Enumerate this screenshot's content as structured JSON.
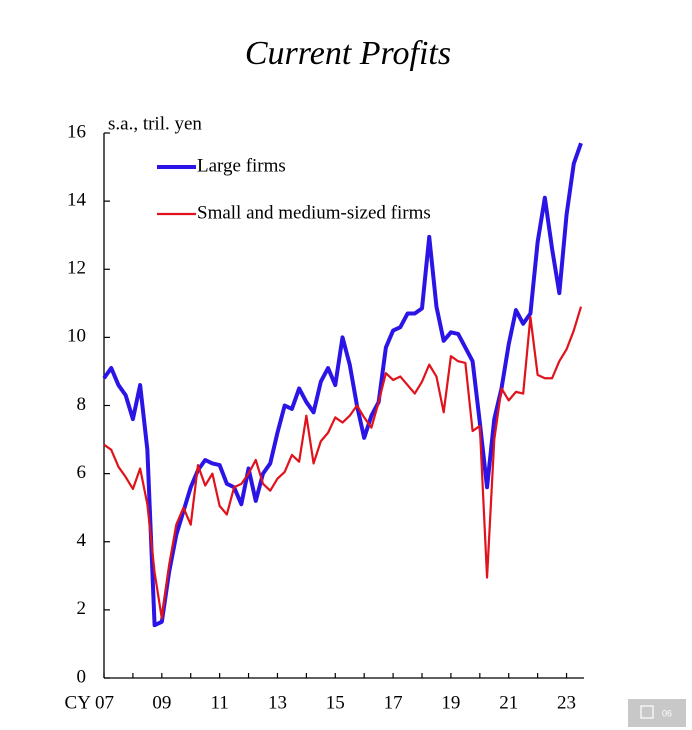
{
  "chart_data": {
    "type": "line",
    "title": "Current Profits",
    "y_axis_label": "s.a., tril. yen",
    "categories": [
      "CY 07",
      null,
      null,
      null,
      null,
      null,
      null,
      null,
      "09",
      null,
      null,
      null,
      null,
      null,
      null,
      null,
      "11",
      null,
      null,
      null,
      null,
      null,
      null,
      null,
      "13",
      null,
      null,
      null,
      null,
      null,
      null,
      null,
      "15",
      null,
      null,
      null,
      null,
      null,
      null,
      null,
      "17",
      null,
      null,
      null,
      null,
      null,
      null,
      null,
      "19",
      null,
      null,
      null,
      null,
      null,
      null,
      null,
      "21",
      null,
      null,
      null,
      null,
      null,
      null,
      null,
      "23",
      null,
      null
    ],
    "series": [
      {
        "name": "Large firms",
        "color": "#2b14e6",
        "values": [
          8.8,
          9.1,
          8.6,
          8.3,
          7.6,
          8.6,
          6.7,
          1.55,
          1.65,
          3.1,
          4.2,
          4.9,
          5.6,
          6.1,
          6.4,
          6.3,
          6.25,
          5.7,
          5.6,
          5.1,
          6.15,
          5.2,
          6.0,
          6.3,
          7.2,
          8.0,
          7.9,
          8.5,
          8.1,
          7.8,
          8.7,
          9.1,
          8.6,
          10.0,
          9.2,
          8.0,
          7.05,
          7.7,
          8.1,
          9.7,
          10.2,
          10.3,
          10.7,
          10.7,
          10.85,
          12.95,
          10.9,
          9.9,
          10.15,
          10.1,
          9.7,
          9.3,
          7.5,
          5.6,
          7.6,
          8.5,
          9.8,
          10.8,
          10.4,
          10.7,
          12.8,
          14.1,
          12.6,
          11.3,
          13.6,
          15.1,
          15.7
        ]
      },
      {
        "name": "Small and medium-sized firms",
        "color": "#e0121b",
        "values": [
          6.85,
          6.7,
          6.2,
          5.9,
          5.55,
          6.15,
          5.1,
          3.1,
          1.75,
          3.3,
          4.5,
          5.0,
          4.5,
          6.25,
          5.65,
          6.0,
          5.05,
          4.8,
          5.6,
          5.7,
          6.0,
          6.4,
          5.7,
          5.5,
          5.85,
          6.05,
          6.55,
          6.35,
          7.7,
          6.3,
          6.95,
          7.2,
          7.65,
          7.5,
          7.7,
          8.0,
          7.65,
          7.35,
          8.1,
          8.95,
          8.75,
          8.85,
          8.6,
          8.35,
          8.7,
          9.2,
          8.85,
          7.8,
          9.45,
          9.3,
          9.25,
          7.25,
          7.4,
          2.95,
          7.0,
          8.5,
          8.15,
          8.4,
          8.35,
          10.6,
          8.9,
          8.8,
          8.8,
          9.3,
          9.65,
          10.2,
          10.9
        ]
      }
    ],
    "ylim": [
      0,
      16
    ],
    "yticks": [
      0,
      2,
      4,
      6,
      8,
      10,
      12,
      14,
      16
    ],
    "legend": "upper left"
  },
  "page_number": "06"
}
